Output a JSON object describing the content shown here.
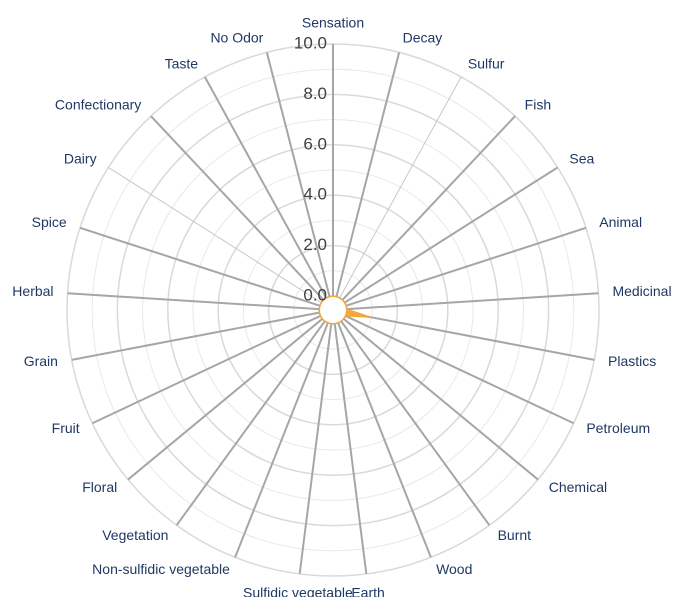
{
  "chart_data": {
    "type": "radar",
    "categories": [
      "Sensation",
      "Decay",
      "Sulfur",
      "Fish",
      "Sea",
      "Animal",
      "Medicinal",
      "Plastics",
      "Petroleum",
      "Chemical",
      "Burnt",
      "Wood",
      "Earth",
      "Sulfidic vegetable",
      "Non-sulfidic vegetable",
      "Vegetation",
      "Floral",
      "Fruit",
      "Grain",
      "Herbal",
      "Spice",
      "Dairy",
      "Confectionary",
      "Taste",
      "No Odor"
    ],
    "series": [
      {
        "color": "#f4a636",
        "values": [
          0,
          0,
          0,
          0,
          0,
          0,
          0,
          1.0,
          0,
          0,
          0,
          0,
          0,
          0,
          0,
          0,
          0,
          0,
          0,
          0,
          0,
          0,
          0,
          0,
          0
        ]
      }
    ],
    "ylim": [
      0,
      10
    ],
    "yticks": [
      {
        "value": 0,
        "label": "0.0"
      },
      {
        "value": 2,
        "label": "2.0"
      },
      {
        "value": 4,
        "label": "4.0"
      },
      {
        "value": 6,
        "label": "6.0"
      },
      {
        "value": 8,
        "label": "8.0"
      },
      {
        "value": 10,
        "label": "10.0"
      }
    ],
    "grid": true
  }
}
